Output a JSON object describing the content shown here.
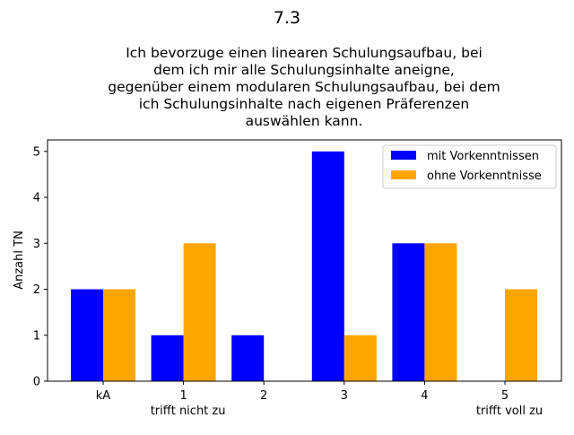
{
  "chart_data": {
    "type": "bar",
    "title": "7.3",
    "subtitle_lines": [
      "Ich bevorzuge einen linearen Schulungsaufbau, bei",
      "dem ich mir alle Schulungsinhalte aneigne,",
      "gegenüber einem modularen Schulungsaufbau, bei dem",
      "ich Schulungsinhalte nach eigenen Präferenzen",
      "auswählen kann."
    ],
    "categories": [
      "kA",
      "1",
      "2",
      "3",
      "4",
      "5"
    ],
    "category_sublabels": [
      "",
      "trifft nicht zu",
      "",
      "",
      "",
      "trifft voll zu"
    ],
    "series": [
      {
        "name": "mit Vorkenntnissen",
        "color": "#0000ff",
        "values": [
          2,
          1,
          1,
          5,
          3,
          0
        ]
      },
      {
        "name": "ohne Vorkenntnisse",
        "color": "#ffa500",
        "values": [
          2,
          3,
          0,
          1,
          3,
          2
        ]
      }
    ],
    "xlabel": "",
    "ylabel": "Anzahl TN",
    "ylim": [
      0,
      5.25
    ],
    "yticks": [
      0,
      1,
      2,
      3,
      4,
      5
    ],
    "grid": false,
    "legend_position": "top-right"
  }
}
